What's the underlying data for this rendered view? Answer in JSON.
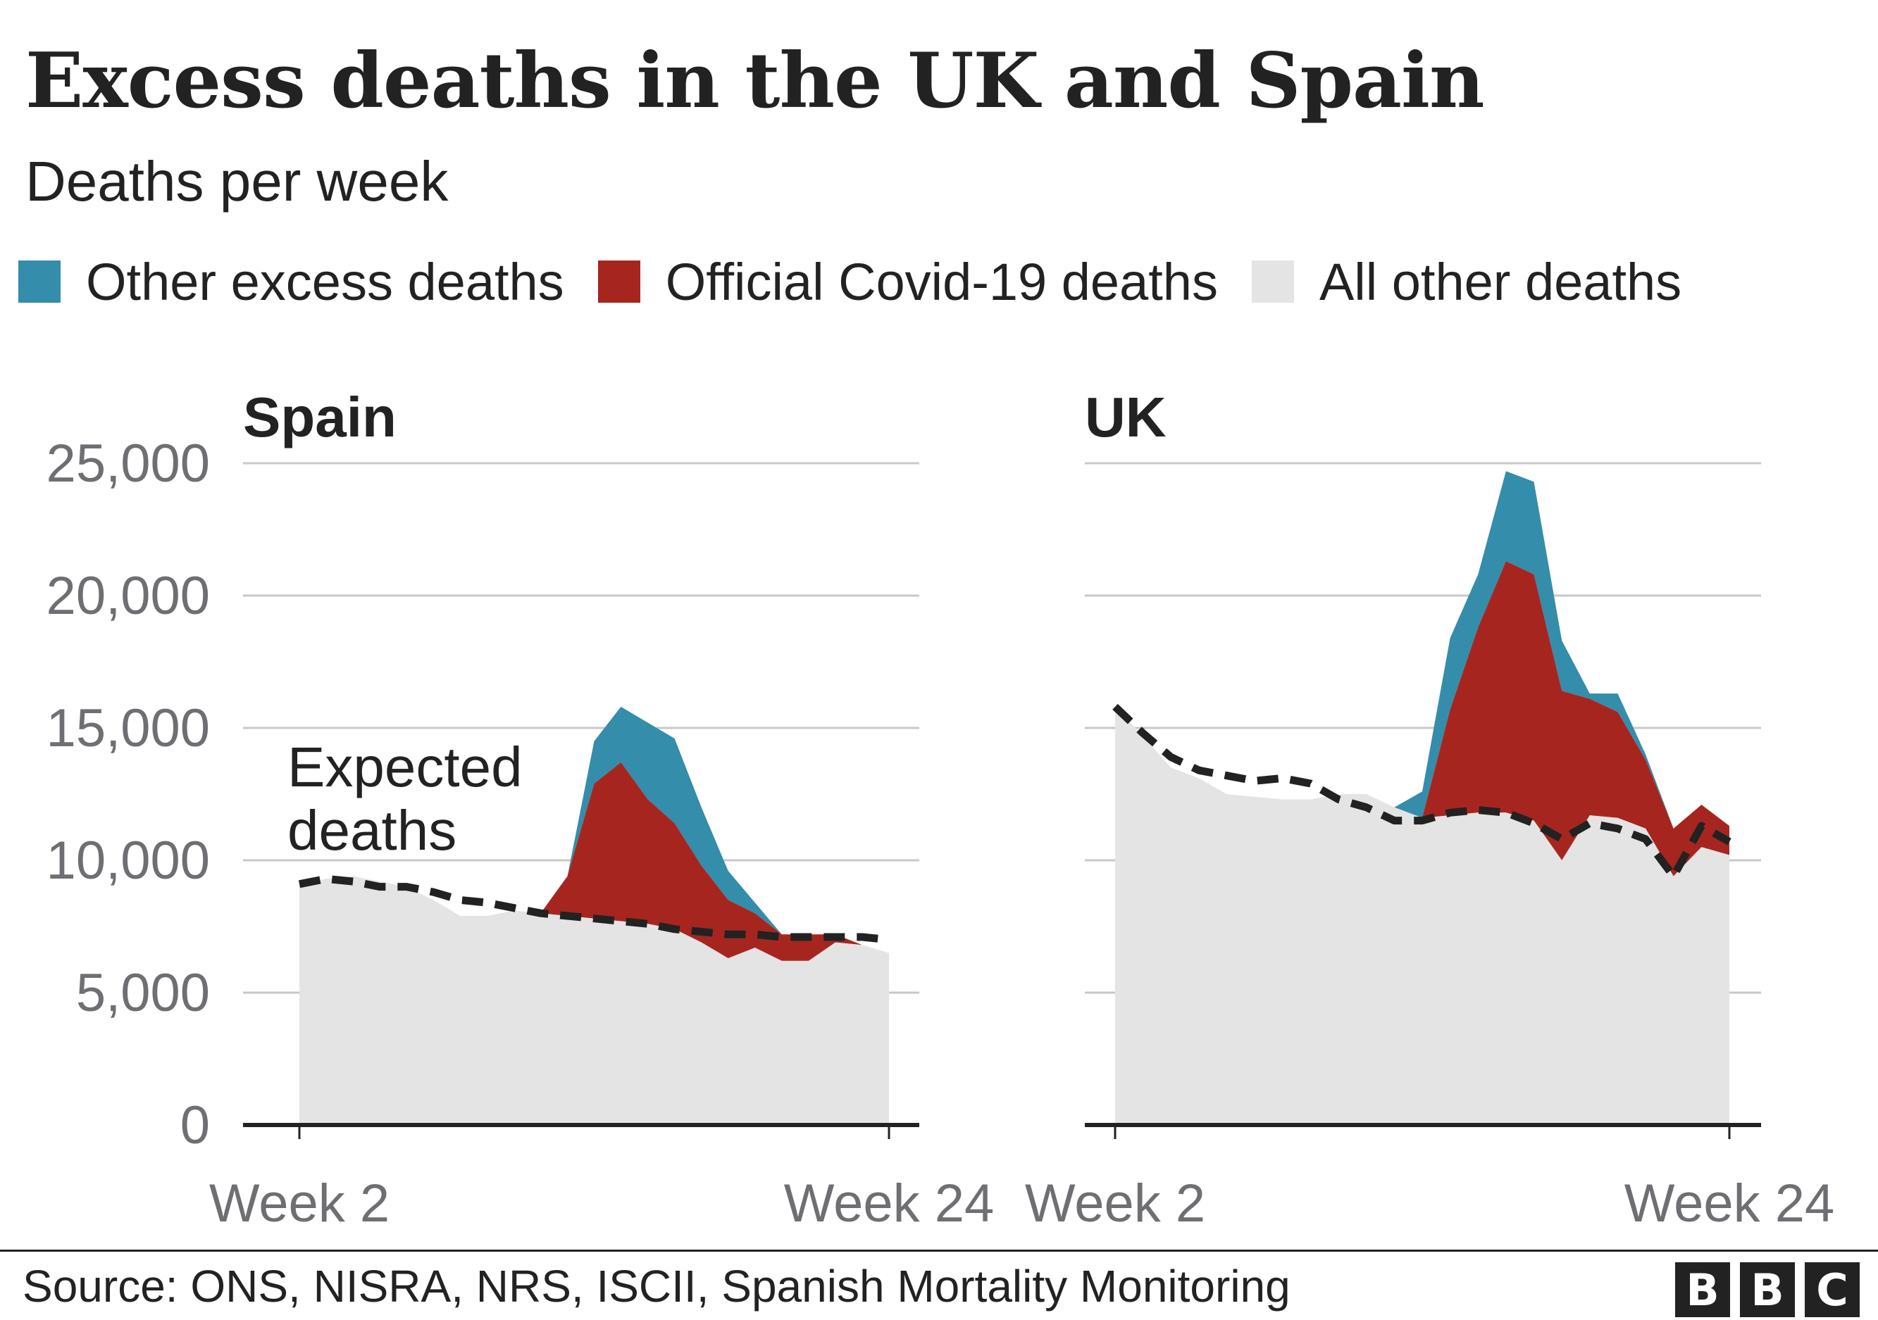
{
  "title": "Excess deaths in the UK and Spain",
  "subtitle": "Deaths per week",
  "legend": [
    {
      "label": "Other excess deaths",
      "color": "#348dab"
    },
    {
      "label": "Official Covid-19 deaths",
      "color": "#a6261f"
    },
    {
      "label": "All other deaths",
      "color": "#e4e4e4"
    }
  ],
  "source": "Source: ONS, NISRA, NRS, ISCII, Spanish Mortality Monitoring",
  "logo": [
    "B",
    "B",
    "C"
  ],
  "chart_data": [
    {
      "type": "area",
      "title": "Spain",
      "annotation": "Expected deaths",
      "x": [
        2,
        3,
        4,
        5,
        6,
        7,
        8,
        9,
        10,
        11,
        12,
        13,
        14,
        15,
        16,
        17,
        18,
        19,
        20,
        21,
        22,
        23,
        24
      ],
      "xticks": [
        "Week 2",
        "Week 24"
      ],
      "ylim": [
        0,
        25000
      ],
      "yticks": [
        "0",
        "5,000",
        "10,000",
        "15,000",
        "20,000",
        "25,000"
      ],
      "ytick_values": [
        0,
        5000,
        10000,
        15000,
        20000,
        25000
      ],
      "series": [
        {
          "name": "All other deaths",
          "values": [
            9000,
            9300,
            9400,
            9200,
            9000,
            8500,
            7900,
            7900,
            8100,
            8000,
            7900,
            7800,
            7700,
            7600,
            7400,
            6900,
            6300,
            6700,
            6200,
            6200,
            6900,
            6800,
            6500
          ]
        },
        {
          "name": "Official Covid-19 deaths",
          "values": [
            0,
            0,
            0,
            0,
            0,
            0,
            0,
            0,
            0,
            0,
            1500,
            5100,
            6000,
            4700,
            4000,
            2900,
            2200,
            1300,
            1000,
            1000,
            300,
            0,
            0
          ]
        },
        {
          "name": "Other excess deaths",
          "values": [
            0,
            0,
            0,
            0,
            0,
            0,
            0,
            0,
            0,
            0,
            0,
            1600,
            2100,
            2900,
            3200,
            2200,
            1100,
            400,
            0,
            0,
            0,
            0,
            0
          ]
        },
        {
          "name": "Expected deaths",
          "values": [
            9100,
            9300,
            9200,
            9000,
            9000,
            8800,
            8500,
            8400,
            8200,
            8000,
            7900,
            7800,
            7700,
            7600,
            7400,
            7300,
            7200,
            7200,
            7100,
            7100,
            7100,
            7100,
            7000
          ]
        }
      ]
    },
    {
      "type": "area",
      "title": "UK",
      "x": [
        2,
        3,
        4,
        5,
        6,
        7,
        8,
        9,
        10,
        11,
        12,
        13,
        14,
        15,
        16,
        17,
        18,
        19,
        20,
        21,
        22,
        23,
        24
      ],
      "xticks": [
        "Week 2",
        "Week 24"
      ],
      "ylim": [
        0,
        25000
      ],
      "series": [
        {
          "name": "All other deaths",
          "values": [
            15800,
            14700,
            13500,
            13100,
            12500,
            12400,
            12300,
            12300,
            12500,
            12500,
            12000,
            11600,
            11700,
            11800,
            11800,
            11500,
            10000,
            11700,
            11600,
            11200,
            9400,
            10500,
            10200
          ]
        },
        {
          "name": "Official Covid-19 deaths",
          "values": [
            0,
            0,
            0,
            0,
            0,
            0,
            0,
            0,
            0,
            0,
            0,
            0,
            4000,
            7000,
            9500,
            9300,
            6400,
            4400,
            4000,
            2600,
            1800,
            1600,
            1100
          ]
        },
        {
          "name": "Other excess deaths",
          "values": [
            0,
            0,
            0,
            0,
            0,
            0,
            0,
            0,
            0,
            0,
            0,
            1000,
            2700,
            2000,
            3400,
            3500,
            1900,
            200,
            700,
            200,
            0,
            0,
            0
          ]
        },
        {
          "name": "Expected deaths",
          "values": [
            15800,
            14800,
            13900,
            13400,
            13200,
            13000,
            13100,
            12900,
            12300,
            12000,
            11500,
            11500,
            11800,
            11900,
            11800,
            11400,
            10800,
            11400,
            11200,
            10800,
            9400,
            11300,
            10700
          ]
        }
      ]
    }
  ]
}
